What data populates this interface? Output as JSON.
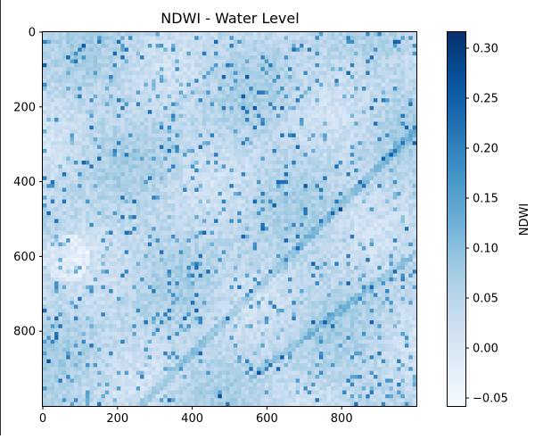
{
  "chart_data": {
    "type": "heatmap",
    "title": "NDWI - Water Level",
    "colormap": "Blues",
    "colorbar_label": "NDWI",
    "colorbar_range": [
      -0.058,
      0.316
    ],
    "colorbar_ticks": [
      -0.05,
      0.0,
      0.05,
      0.1,
      0.15,
      0.2,
      0.25,
      0.3
    ],
    "colorbar_tick_labels": [
      "−0.05",
      "0.00",
      "0.05",
      "0.10",
      "0.15",
      "0.20",
      "0.25",
      "0.30"
    ],
    "x_range": [
      0,
      1000
    ],
    "y_range": [
      0,
      1000
    ],
    "y_inverted": true,
    "x_ticks": [
      0,
      200,
      400,
      600,
      800
    ],
    "y_ticks": [
      0,
      200,
      400,
      600,
      800
    ],
    "x_tick_labels": [
      "0",
      "200",
      "400",
      "600",
      "800"
    ],
    "y_tick_labels": [
      "0",
      "200",
      "400",
      "600",
      "800"
    ],
    "grid": false
  }
}
